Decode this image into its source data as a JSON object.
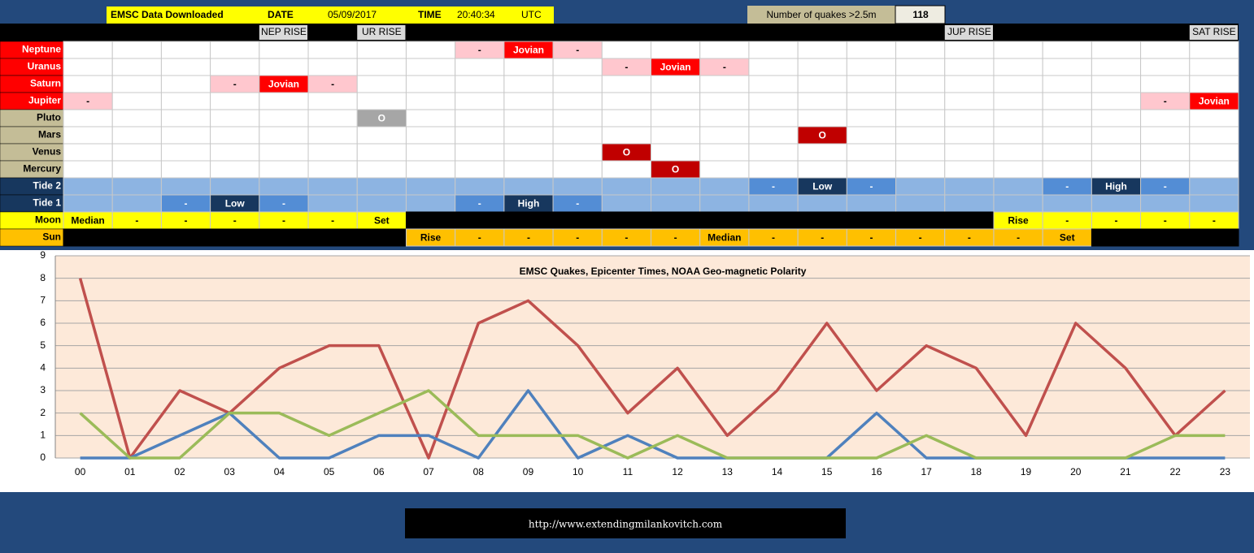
{
  "header": {
    "download_label": "EMSC Data Downloaded",
    "date_label": "DATE",
    "date": "05/09/2017",
    "time_label": "TIME",
    "time": "20:40:34",
    "zone": "UTC",
    "quakes_label": "Number of quakes >2.5m",
    "quakes": 118
  },
  "rise_row": [
    null,
    null,
    null,
    null,
    "NEP RISE",
    null,
    "UR RISE",
    null,
    null,
    null,
    null,
    null,
    null,
    null,
    null,
    null,
    null,
    null,
    "JUP RISE",
    null,
    null,
    null,
    null,
    "SAT RISE"
  ],
  "rows": [
    {
      "label": "Neptune",
      "label_fill": "#ff0000",
      "label_color": "#ffffff",
      "fill": "#ffffff",
      "color": "#ffc7ce",
      "strong_color": "#ff0000",
      "text_color": "#000000",
      "strong_text_color": "#ffffff",
      "cells": [
        null,
        null,
        null,
        null,
        null,
        null,
        null,
        null,
        "-",
        "Jovian",
        "-",
        null,
        null,
        null,
        null,
        null,
        null,
        null,
        null,
        null,
        null,
        null,
        null,
        null
      ]
    },
    {
      "label": "Uranus",
      "label_fill": "#ff0000",
      "label_color": "#ffffff",
      "fill": "#ffffff",
      "color": "#ffc7ce",
      "strong_color": "#ff0000",
      "text_color": "#000000",
      "strong_text_color": "#ffffff",
      "cells": [
        null,
        null,
        null,
        null,
        null,
        null,
        null,
        null,
        null,
        null,
        null,
        "-",
        "Jovian",
        "-",
        null,
        null,
        null,
        null,
        null,
        null,
        null,
        null,
        null,
        null
      ]
    },
    {
      "label": "Saturn",
      "label_fill": "#ff0000",
      "label_color": "#ffffff",
      "fill": "#ffffff",
      "color": "#ffc7ce",
      "strong_color": "#ff0000",
      "text_color": "#000000",
      "strong_text_color": "#ffffff",
      "cells": [
        null,
        null,
        null,
        "-",
        "Jovian",
        "-",
        null,
        null,
        null,
        null,
        null,
        null,
        null,
        null,
        null,
        null,
        null,
        null,
        null,
        null,
        null,
        null,
        null,
        null
      ]
    },
    {
      "label": "Jupiter",
      "label_fill": "#ff0000",
      "label_color": "#ffffff",
      "fill": "#ffffff",
      "color": "#ffc7ce",
      "strong_color": "#ff0000",
      "text_color": "#000000",
      "strong_text_color": "#ffffff",
      "cells": [
        "-",
        null,
        null,
        null,
        null,
        null,
        null,
        null,
        null,
        null,
        null,
        null,
        null,
        null,
        null,
        null,
        null,
        null,
        null,
        null,
        null,
        null,
        "-",
        "Jovian"
      ]
    },
    {
      "label": "Pluto",
      "label_fill": "#c4bd97",
      "label_color": "#000000",
      "fill": "#ffffff",
      "color": "#a6a6a6",
      "strong_color": "#a6a6a6",
      "text_color": "#ffffff",
      "strong_text_color": "#ffffff",
      "cells": [
        null,
        null,
        null,
        null,
        null,
        null,
        "O",
        null,
        null,
        null,
        null,
        null,
        null,
        null,
        null,
        null,
        null,
        null,
        null,
        null,
        null,
        null,
        null,
        null
      ]
    },
    {
      "label": "Mars",
      "label_fill": "#c4bd97",
      "label_color": "#000000",
      "fill": "#ffffff",
      "color": "#c00000",
      "strong_color": "#c00000",
      "text_color": "#ffffff",
      "strong_text_color": "#ffffff",
      "cells": [
        null,
        null,
        null,
        null,
        null,
        null,
        null,
        null,
        null,
        null,
        null,
        null,
        null,
        null,
        null,
        "O",
        null,
        null,
        null,
        null,
        null,
        null,
        null,
        null
      ]
    },
    {
      "label": "Venus",
      "label_fill": "#c4bd97",
      "label_color": "#000000",
      "fill": "#ffffff",
      "color": "#c00000",
      "strong_color": "#c00000",
      "text_color": "#ffffff",
      "strong_text_color": "#ffffff",
      "cells": [
        null,
        null,
        null,
        null,
        null,
        null,
        null,
        null,
        null,
        null,
        null,
        "O",
        null,
        null,
        null,
        null,
        null,
        null,
        null,
        null,
        null,
        null,
        null,
        null
      ]
    },
    {
      "label": "Mercury",
      "label_fill": "#c4bd97",
      "label_color": "#000000",
      "fill": "#ffffff",
      "color": "#c00000",
      "strong_color": "#c00000",
      "text_color": "#ffffff",
      "strong_text_color": "#ffffff",
      "cells": [
        null,
        null,
        null,
        null,
        null,
        null,
        null,
        null,
        null,
        null,
        null,
        null,
        "O",
        null,
        null,
        null,
        null,
        null,
        null,
        null,
        null,
        null,
        null,
        null
      ]
    },
    {
      "label": "Tide 2",
      "label_fill": "#17375e",
      "label_color": "#ffffff",
      "fill": "#8db4e2",
      "color": "#538dd5",
      "strong_color": "#17375e",
      "text_color": "#ffffff",
      "strong_text_color": "#ffffff",
      "cells": [
        null,
        null,
        null,
        null,
        null,
        null,
        null,
        null,
        null,
        null,
        null,
        null,
        null,
        null,
        "-",
        "Low",
        "-",
        null,
        null,
        null,
        "-",
        "High",
        "-",
        null
      ]
    },
    {
      "label": "Tide 1",
      "label_fill": "#17375e",
      "label_color": "#ffffff",
      "fill": "#8db4e2",
      "color": "#538dd5",
      "strong_color": "#17375e",
      "text_color": "#ffffff",
      "strong_text_color": "#ffffff",
      "cells": [
        null,
        null,
        "-",
        "Low",
        "-",
        null,
        null,
        null,
        "-",
        "High",
        "-",
        null,
        null,
        null,
        null,
        null,
        null,
        null,
        null,
        null,
        null,
        null,
        null,
        null
      ]
    },
    {
      "label": "Moon",
      "label_fill": "#ffff00",
      "label_color": "#000000",
      "fill": "#000000",
      "color": "#ffff00",
      "strong_color": "#ffff00",
      "text_color": "#000000",
      "strong_text_color": "#000000",
      "cells": [
        "Median",
        "-",
        "-",
        "-",
        "-",
        "-",
        "Set",
        null,
        null,
        null,
        null,
        null,
        null,
        null,
        null,
        null,
        null,
        null,
        null,
        "Rise",
        "-",
        "-",
        "-",
        "-"
      ]
    },
    {
      "label": "Sun",
      "label_fill": "#ffc000",
      "label_color": "#000000",
      "fill": "#000000",
      "color": "#ffc000",
      "strong_color": "#ffc000",
      "text_color": "#000000",
      "strong_text_color": "#000000",
      "cells": [
        null,
        null,
        null,
        null,
        null,
        null,
        null,
        "Rise",
        "-",
        "-",
        "-",
        "-",
        "-",
        "Median",
        "-",
        "-",
        "-",
        "-",
        "-",
        "-",
        "Set",
        null,
        null,
        null
      ]
    }
  ],
  "chart_data": {
    "type": "line",
    "title": "EMSC Quakes, Epicenter Times, NOAA Geo-magnetic Polarity",
    "categories": [
      "00",
      "01",
      "02",
      "03",
      "04",
      "05",
      "06",
      "07",
      "08",
      "09",
      "10",
      "11",
      "12",
      "13",
      "14",
      "15",
      "16",
      "17",
      "18",
      "19",
      "20",
      "21",
      "22",
      "23"
    ],
    "series": [
      {
        "color": "#c0504d",
        "values": [
          8,
          0,
          3,
          2,
          4,
          5,
          5,
          0,
          6,
          7,
          5,
          2,
          4,
          1,
          3,
          6,
          3,
          5,
          4,
          1,
          6,
          4,
          1,
          3
        ]
      },
      {
        "color": "#4f81bd",
        "values": [
          0,
          0,
          1,
          2,
          0,
          0,
          1,
          1,
          0,
          3,
          0,
          1,
          0,
          0,
          0,
          0,
          2,
          0,
          0,
          0,
          0,
          0,
          0,
          0
        ]
      },
      {
        "color": "#9bbb59",
        "values": [
          2,
          0,
          0,
          2,
          2,
          1,
          2,
          3,
          1,
          1,
          1,
          0,
          1,
          0,
          0,
          0,
          0,
          1,
          0,
          0,
          0,
          0,
          1,
          1
        ]
      }
    ],
    "ylim": [
      0,
      9
    ],
    "yticks": [
      0,
      1,
      2,
      3,
      4,
      5,
      6,
      7,
      8,
      9
    ],
    "grid": true
  },
  "footer": {
    "url": "http://www.extendingmilankovitch.com"
  }
}
